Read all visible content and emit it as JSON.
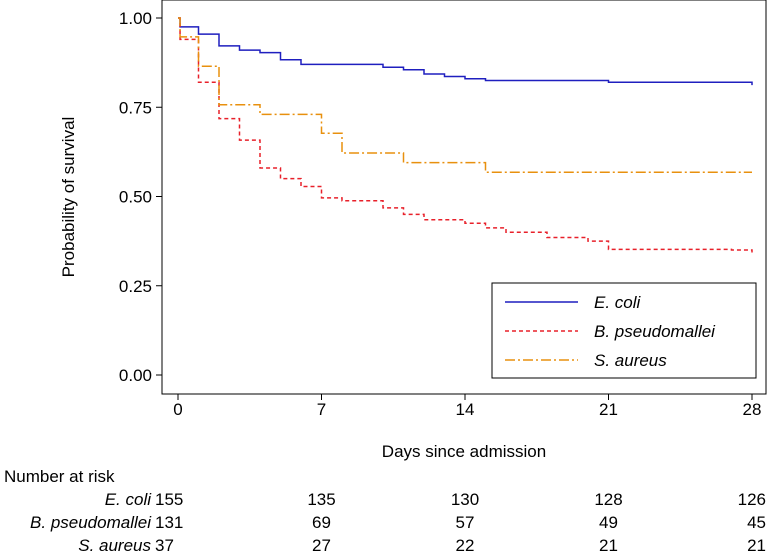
{
  "chart_data": {
    "type": "line",
    "subtype": "kaplan-meier step",
    "xlabel": "Days since admission",
    "ylabel": "Probability of survival",
    "xlim": [
      0,
      28
    ],
    "ylim": [
      0,
      1
    ],
    "x_ticks": [
      0,
      7,
      14,
      21,
      28
    ],
    "y_ticks": [
      0.0,
      0.25,
      0.5,
      0.75,
      1.0
    ],
    "x_tick_labels": [
      "0",
      "7",
      "14",
      "21",
      "28"
    ],
    "y_tick_labels": [
      "0.00",
      "0.25",
      "0.50",
      "0.75",
      "1.00"
    ],
    "legend_position": "bottom-right",
    "series": [
      {
        "name": "E. coli",
        "color": "#1f1fbf",
        "dash": "solid",
        "steps": [
          [
            0,
            1.0
          ],
          [
            0.1,
            0.975
          ],
          [
            1,
            0.955
          ],
          [
            2,
            0.922
          ],
          [
            3,
            0.91
          ],
          [
            4,
            0.903
          ],
          [
            5,
            0.883
          ],
          [
            6,
            0.87
          ],
          [
            10,
            0.862
          ],
          [
            11,
            0.855
          ],
          [
            12,
            0.843
          ],
          [
            13,
            0.836
          ],
          [
            14,
            0.83
          ],
          [
            15,
            0.825
          ],
          [
            21,
            0.82
          ],
          [
            28,
            0.812
          ]
        ],
        "end": 28
      },
      {
        "name": "B. pseudomallei",
        "color": "#e8202a",
        "dash": "4,3",
        "steps": [
          [
            0,
            1.0
          ],
          [
            0.1,
            0.94
          ],
          [
            1,
            0.82
          ],
          [
            2,
            0.718
          ],
          [
            3,
            0.658
          ],
          [
            4,
            0.58
          ],
          [
            5,
            0.55
          ],
          [
            6,
            0.528
          ],
          [
            7,
            0.496
          ],
          [
            8,
            0.488
          ],
          [
            10,
            0.468
          ],
          [
            11,
            0.45
          ],
          [
            12,
            0.435
          ],
          [
            14,
            0.425
          ],
          [
            15,
            0.412
          ],
          [
            16,
            0.4
          ],
          [
            18,
            0.385
          ],
          [
            20,
            0.375
          ],
          [
            21,
            0.352
          ],
          [
            27,
            0.35
          ],
          [
            28,
            0.343
          ]
        ],
        "end": 28
      },
      {
        "name": "S. aureus",
        "color": "#e8900e",
        "dash": "10,3,2,3",
        "steps": [
          [
            0,
            1.0
          ],
          [
            0.1,
            0.947
          ],
          [
            1,
            0.865
          ],
          [
            2,
            0.757
          ],
          [
            4,
            0.73
          ],
          [
            7,
            0.677
          ],
          [
            8,
            0.622
          ],
          [
            11,
            0.595
          ],
          [
            15,
            0.568
          ]
        ],
        "end": 28
      }
    ],
    "number_at_risk": {
      "title": "Number at risk",
      "rows": [
        {
          "name": "E. coli",
          "values": [
            "155",
            "135",
            "130",
            "128",
            "126"
          ]
        },
        {
          "name": "B. pseudomallei",
          "values": [
            "131",
            "69",
            "57",
            "49",
            "45"
          ]
        },
        {
          "name": "S. aureus",
          "values": [
            "37",
            "27",
            "22",
            "21",
            "21"
          ]
        }
      ]
    }
  }
}
